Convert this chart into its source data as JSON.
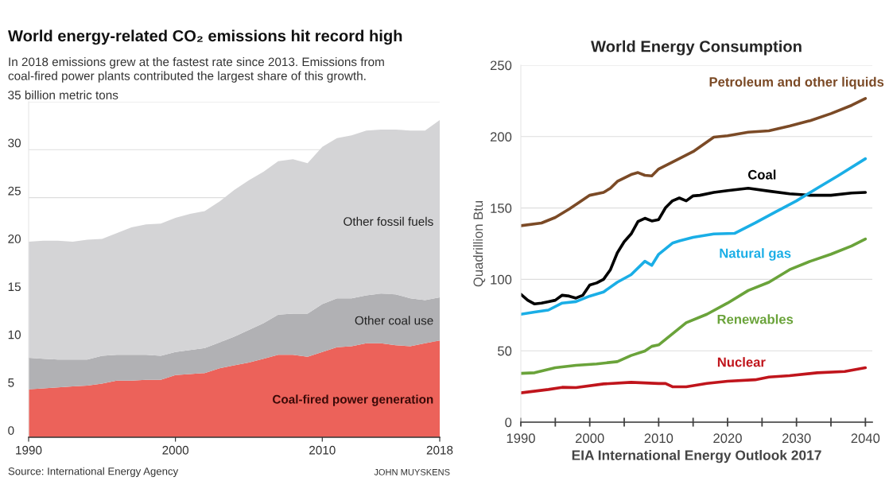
{
  "chart_data": [
    {
      "type": "area",
      "stacked": true,
      "title": "World energy-related CO₂ emissions hit record high",
      "subtitle": "In 2018 emissions grew at the fastest rate since 2013. Emissions from\ncoal-fired power plants contributed the largest share of this growth.",
      "x": [
        1990,
        1991,
        1992,
        1993,
        1994,
        1995,
        1996,
        1997,
        1998,
        1999,
        2000,
        2001,
        2002,
        2003,
        2004,
        2005,
        2006,
        2007,
        2008,
        2009,
        2010,
        2011,
        2012,
        2013,
        2014,
        2015,
        2016,
        2017,
        2018
      ],
      "series": [
        {
          "name": "Coal-fired power generation",
          "color": "#ec625a",
          "values": [
            5.0,
            5.1,
            5.2,
            5.3,
            5.4,
            5.6,
            5.9,
            5.9,
            6.0,
            6.0,
            6.5,
            6.6,
            6.7,
            7.2,
            7.5,
            7.8,
            8.2,
            8.6,
            8.6,
            8.4,
            8.9,
            9.4,
            9.5,
            9.8,
            9.8,
            9.6,
            9.5,
            9.8,
            10.1
          ]
        },
        {
          "name": "Other coal use",
          "color": "#b1b1b4",
          "values": [
            3.3,
            3.1,
            2.9,
            2.8,
            2.7,
            2.9,
            2.7,
            2.7,
            2.6,
            2.5,
            2.4,
            2.5,
            2.6,
            2.7,
            3.0,
            3.4,
            3.7,
            4.2,
            4.3,
            4.5,
            5.0,
            5.1,
            5.0,
            5.0,
            5.2,
            5.3,
            5.0,
            4.5,
            4.5
          ]
        },
        {
          "name": "Other fossil fuels",
          "color": "#d4d4d6",
          "values": [
            12.1,
            12.3,
            12.4,
            12.3,
            12.5,
            12.2,
            12.7,
            13.3,
            13.6,
            13.8,
            14.0,
            14.2,
            14.3,
            14.7,
            15.3,
            15.6,
            15.8,
            16.0,
            16.1,
            15.7,
            16.4,
            16.7,
            17.0,
            17.2,
            17.1,
            17.2,
            17.5,
            17.7,
            18.5
          ]
        }
      ],
      "xlim": [
        1990,
        2018
      ],
      "xticks": [
        1990,
        2000,
        2010,
        2018
      ],
      "ylim": [
        0,
        35
      ],
      "yticks": [
        0,
        5,
        10,
        15,
        20,
        25,
        30,
        {
          "value": 35,
          "label": "35 billion metric tons"
        }
      ],
      "grid": "y",
      "annotations": [
        "Source: International Energy Agency",
        "JOHN MUYSKENS"
      ]
    },
    {
      "type": "line",
      "title": "World Energy Consumption",
      "ylabel": "Quadrillion Btu",
      "xlabel": "EIA International Energy Outlook 2017",
      "series": [
        {
          "name": "Petroleum and other liquids",
          "color": "#7b4a26",
          "x": [
            1990,
            1993,
            1995,
            1997,
            2000,
            2002,
            2003,
            2004,
            2006,
            2007,
            2008,
            2009,
            2010,
            2012,
            2015,
            2018,
            2020,
            2023,
            2026,
            2029,
            2032,
            2035,
            2038,
            2040
          ],
          "values": [
            137.6,
            139.5,
            143.4,
            149.2,
            158.9,
            160.9,
            163.8,
            168.6,
            173.4,
            174.8,
            172.9,
            172.5,
            177.3,
            182.2,
            189.5,
            199.6,
            200.6,
            203.1,
            204.1,
            207.4,
            211.2,
            216.1,
            221.9,
            226.7
          ]
        },
        {
          "name": "Coal",
          "color": "#000000",
          "x": [
            1990,
            1991,
            1992,
            1993,
            1994,
            1995,
            1996,
            1997,
            1998,
            1999,
            2000,
            2001,
            2002,
            2003,
            2004,
            2005,
            2006,
            2007,
            2008,
            2009,
            2010,
            2011,
            2012,
            2013,
            2014,
            2015,
            2016,
            2018,
            2020,
            2023,
            2026,
            2029,
            2032,
            2035,
            2038,
            2040
          ],
          "values": [
            89.6,
            85.4,
            82.8,
            83.4,
            84.4,
            85.4,
            88.9,
            88.3,
            86.9,
            88.9,
            96.1,
            97.5,
            100.0,
            106.8,
            118.6,
            126.4,
            131.8,
            140.5,
            142.8,
            140.9,
            141.9,
            150.2,
            155.0,
            157.0,
            155.0,
            158.5,
            158.9,
            160.9,
            162.2,
            163.8,
            161.8,
            159.9,
            158.9,
            158.9,
            160.5,
            160.9
          ]
        },
        {
          "name": "Natural gas",
          "color": "#1aaee6",
          "x": [
            1990,
            1992,
            1994,
            1996,
            1998,
            2000,
            2002,
            2004,
            2006,
            2008,
            2009,
            2010,
            2012,
            2013,
            2015,
            2018,
            2021,
            2024,
            2027,
            2030,
            2033,
            2036,
            2040
          ],
          "values": [
            75.6,
            77.1,
            78.5,
            83.4,
            84.4,
            88.3,
            91.2,
            98.0,
            103.3,
            112.7,
            109.8,
            117.6,
            125.4,
            126.9,
            129.5,
            131.8,
            132.2,
            139.5,
            147.3,
            155.0,
            163.8,
            172.5,
            184.5
          ]
        },
        {
          "name": "Renewables",
          "color": "#6aa33a",
          "x": [
            1990,
            1992,
            1995,
            1998,
            2001,
            2004,
            2006,
            2008,
            2009,
            2010,
            2012,
            2014,
            2017,
            2020,
            2023,
            2026,
            2029,
            2032,
            2035,
            2038,
            2040
          ],
          "values": [
            34.2,
            34.6,
            38.1,
            39.8,
            40.8,
            42.4,
            46.7,
            49.8,
            53.1,
            54.1,
            61.9,
            69.7,
            75.6,
            83.4,
            92.2,
            98.0,
            106.8,
            112.7,
            117.6,
            123.4,
            128.3
          ]
        },
        {
          "name": "Nuclear",
          "color": "#c0151c",
          "x": [
            1990,
            1994,
            1996,
            1998,
            2002,
            2006,
            2010,
            2011,
            2012,
            2014,
            2017,
            2020,
            2024,
            2026,
            2029,
            2033,
            2037,
            2040
          ],
          "values": [
            20.5,
            22.9,
            24.4,
            24.2,
            26.8,
            27.9,
            27.1,
            27.1,
            24.8,
            24.8,
            27.1,
            28.7,
            29.7,
            31.6,
            32.6,
            34.6,
            35.5,
            38.1
          ]
        }
      ],
      "xlim": [
        1990,
        2041
      ],
      "xticks": [
        1990,
        {
          "value": 1995,
          "label": null
        },
        2000,
        {
          "value": 2005,
          "label": null
        },
        2010,
        {
          "value": 2015,
          "label": null
        },
        2020,
        {
          "value": 2025,
          "label": null
        },
        2030,
        {
          "value": 2035,
          "label": null
        },
        2040
      ],
      "ylim": [
        0,
        250
      ],
      "yticks": [
        0,
        50,
        100,
        150,
        200,
        250
      ],
      "grid": "y"
    }
  ]
}
